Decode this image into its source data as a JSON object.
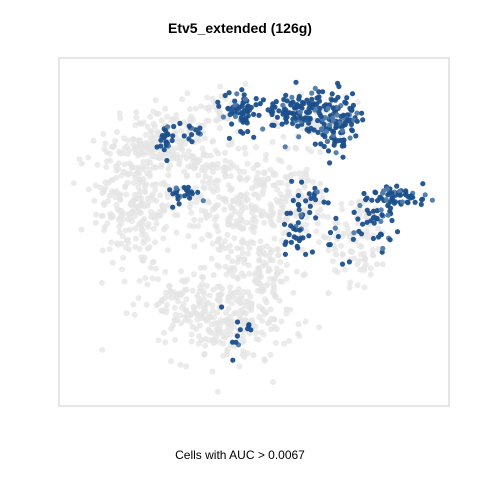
{
  "chart_data": {
    "type": "scatter",
    "title": "Etv5_extended (126g)",
    "xlabel": "Cells with AUC > 0.0067",
    "ylabel": "",
    "xlim": [
      0,
      100
    ],
    "ylim": [
      0,
      100
    ],
    "axes_visible": false,
    "grid": false,
    "legend": "none",
    "colors": {
      "background_cells": "#e4e4e4",
      "high_auc_cells": "#1b4f8c",
      "mid_auc_cells": "#4f7aa8",
      "frame": "#cccccc"
    },
    "series": [
      {
        "role": "background",
        "clusters": [
          {
            "cx": 18,
            "cy": 60,
            "sx": 6,
            "sy": 11,
            "n": 260
          },
          {
            "cx": 24,
            "cy": 78,
            "sx": 7,
            "sy": 5,
            "n": 140
          },
          {
            "cx": 46,
            "cy": 56,
            "sx": 6,
            "sy": 10,
            "n": 200
          },
          {
            "cx": 44,
            "cy": 22,
            "sx": 8,
            "sy": 6,
            "n": 210
          },
          {
            "cx": 30,
            "cy": 30,
            "sx": 6,
            "sy": 5,
            "n": 90
          },
          {
            "cx": 52,
            "cy": 38,
            "sx": 5,
            "sy": 5,
            "n": 80
          },
          {
            "cx": 60,
            "cy": 60,
            "sx": 6,
            "sy": 6,
            "n": 110
          },
          {
            "cx": 78,
            "cy": 48,
            "sx": 4,
            "sy": 7,
            "n": 90
          },
          {
            "cx": 66,
            "cy": 84,
            "sx": 6,
            "sy": 4,
            "n": 60
          },
          {
            "cx": 42,
            "cy": 88,
            "sx": 5,
            "sy": 3,
            "n": 50
          },
          {
            "cx": 36,
            "cy": 70,
            "sx": 4,
            "sy": 6,
            "n": 60
          }
        ]
      },
      {
        "role": "highlighted",
        "clusters": [
          {
            "cx": 46,
            "cy": 87,
            "sx": 2.6,
            "sy": 3.0,
            "n": 60
          },
          {
            "cx": 63,
            "cy": 87,
            "sx": 5.5,
            "sy": 3.5,
            "n": 130
          },
          {
            "cx": 72,
            "cy": 83,
            "sx": 3.0,
            "sy": 4.0,
            "n": 90
          },
          {
            "cx": 88,
            "cy": 61,
            "sx": 4.0,
            "sy": 1.6,
            "n": 55
          },
          {
            "cx": 83,
            "cy": 53,
            "sx": 2.5,
            "sy": 4.5,
            "n": 35
          },
          {
            "cx": 26,
            "cy": 78,
            "sx": 1.3,
            "sy": 2.5,
            "n": 22
          },
          {
            "cx": 32,
            "cy": 81,
            "sx": 2.0,
            "sy": 2.5,
            "n": 14
          },
          {
            "cx": 30,
            "cy": 62,
            "sx": 2.5,
            "sy": 2.0,
            "n": 22
          },
          {
            "cx": 61,
            "cy": 50,
            "sx": 1.5,
            "sy": 3.5,
            "n": 28
          },
          {
            "cx": 66,
            "cy": 60,
            "sx": 3.0,
            "sy": 2.0,
            "n": 18
          },
          {
            "cx": 72,
            "cy": 48,
            "sx": 5.0,
            "sy": 5.0,
            "n": 15
          },
          {
            "cx": 45,
            "cy": 20,
            "sx": 3.0,
            "sy": 4.0,
            "n": 12
          }
        ]
      }
    ]
  }
}
